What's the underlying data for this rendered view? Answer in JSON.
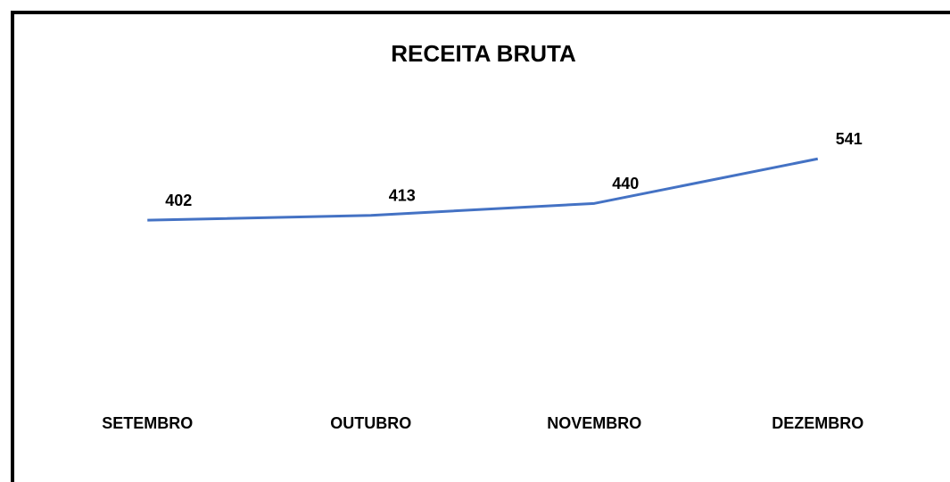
{
  "chart_data": {
    "type": "line",
    "title": "RECEITA BRUTA",
    "categories": [
      "SETEMBRO",
      "OUTUBRO",
      "NOVEMBRO",
      "DEZEMBRO"
    ],
    "series": [
      {
        "name": "RECEITA BRUTA",
        "color": "#4472c4",
        "values": [
          402,
          413,
          440,
          541
        ]
      }
    ],
    "ylim": [
      0,
      600
    ]
  }
}
